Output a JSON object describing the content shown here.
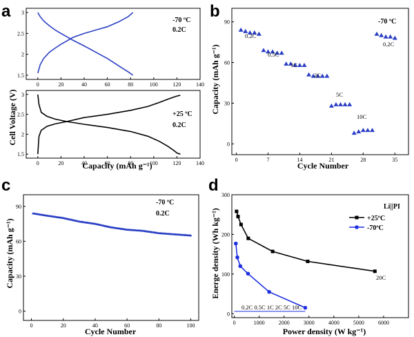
{
  "panels": {
    "a": {
      "label": "a",
      "ylabel": "Cell Voltage (V)",
      "xlabel": "Capacity (mAh g⁻¹)",
      "top": {
        "temp": "-70 ºC",
        "rate": "0.2C"
      },
      "bottom": {
        "temp": "+25 ºC",
        "rate": "0.2C"
      }
    },
    "b": {
      "label": "b",
      "temp": "-70 ºC",
      "ylabel": "Capacity (mAh g⁻¹)",
      "xlabel": "Cycle Number",
      "rate_labels": [
        "0.2C",
        "0.5C",
        "1C",
        "2C",
        "5C",
        "10C",
        "0.2C"
      ]
    },
    "c": {
      "label": "c",
      "temp": "-70 ºC",
      "rate": "0.2C",
      "ylabel": "Capacity (mAh g⁻¹)",
      "xlabel": "Cycle  Number"
    },
    "d": {
      "label": "d",
      "ylabel": "Energe density (Wh kg⁻¹)",
      "xlabel": "Power density (W kg⁻¹)",
      "legend_title": "Li||PI",
      "annotations": [
        "20C",
        "0.2C 0.5C 1C 2C 5C   10C"
      ]
    }
  },
  "chart_data": [
    {
      "id": "a-top",
      "type": "line",
      "xlim": [
        -10,
        140
      ],
      "ylim": [
        1.4,
        3.1
      ],
      "xticks": [
        0,
        20,
        40,
        60,
        80,
        100,
        120,
        140
      ],
      "yticks": [
        1.5,
        2.0,
        2.5,
        3.0
      ],
      "color": "#2a3fc4",
      "series": [
        {
          "x": [
            0,
            2,
            5,
            10,
            15,
            20,
            25,
            30,
            40,
            50,
            60,
            70,
            78,
            82
          ],
          "y": [
            3.0,
            2.9,
            2.8,
            2.68,
            2.58,
            2.5,
            2.42,
            2.34,
            2.2,
            2.05,
            1.9,
            1.72,
            1.58,
            1.5
          ]
        },
        {
          "x": [
            0,
            2,
            5,
            10,
            15,
            20,
            25,
            30,
            40,
            50,
            60,
            70,
            78,
            82
          ],
          "y": [
            1.55,
            1.75,
            1.9,
            2.05,
            2.15,
            2.24,
            2.32,
            2.4,
            2.5,
            2.58,
            2.66,
            2.78,
            2.9,
            3.0
          ]
        }
      ]
    },
    {
      "id": "a-bottom",
      "type": "line",
      "xlim": [
        -10,
        140
      ],
      "ylim": [
        1.4,
        3.1
      ],
      "xticks": [
        0,
        20,
        40,
        60,
        80,
        100,
        120,
        140
      ],
      "yticks": [
        1.5,
        2.0,
        2.5,
        3.0
      ],
      "color": "#000000",
      "series": [
        {
          "x": [
            0,
            1,
            3,
            8,
            15,
            25,
            40,
            60,
            80,
            95,
            105,
            112,
            117,
            120,
            123
          ],
          "y": [
            3.0,
            2.75,
            2.55,
            2.45,
            2.38,
            2.32,
            2.25,
            2.17,
            2.07,
            1.95,
            1.82,
            1.7,
            1.6,
            1.53,
            1.5
          ]
        },
        {
          "x": [
            0,
            1,
            3,
            8,
            15,
            25,
            40,
            60,
            80,
            95,
            105,
            112,
            117,
            120,
            123
          ],
          "y": [
            1.5,
            1.95,
            2.1,
            2.2,
            2.26,
            2.32,
            2.42,
            2.5,
            2.6,
            2.7,
            2.8,
            2.88,
            2.93,
            2.96,
            2.98
          ]
        }
      ]
    },
    {
      "id": "b",
      "type": "scatter",
      "xlim": [
        -1,
        38
      ],
      "ylim": [
        -8,
        100
      ],
      "xticks": [
        0,
        7,
        14,
        21,
        28,
        35
      ],
      "yticks": [
        0,
        30,
        60,
        90
      ],
      "color": "#2a3fc4",
      "x": [
        1,
        2,
        3,
        4,
        5,
        6,
        7,
        8,
        9,
        10,
        11,
        12,
        13,
        14,
        15,
        16,
        17,
        18,
        19,
        20,
        21,
        22,
        23,
        24,
        25,
        26,
        27,
        28,
        29,
        30,
        31,
        32,
        33,
        34,
        35
      ],
      "y": [
        84,
        83,
        82,
        82,
        81,
        69,
        68,
        68,
        67,
        67,
        59,
        59,
        58,
        58,
        58,
        51,
        50,
        50,
        50,
        50,
        28,
        29,
        29,
        29,
        29,
        8,
        9,
        10,
        10,
        10,
        81,
        80,
        79,
        79,
        78
      ]
    },
    {
      "id": "c",
      "type": "line",
      "xlim": [
        -5,
        105
      ],
      "ylim": [
        -8,
        100
      ],
      "xticks": [
        0,
        20,
        40,
        60,
        80,
        100
      ],
      "yticks": [
        0,
        30,
        60,
        90
      ],
      "color": "#2a3fc4",
      "x": [
        1,
        10,
        20,
        30,
        40,
        50,
        60,
        70,
        80,
        90,
        100
      ],
      "y": [
        84,
        82,
        80,
        77,
        75,
        72,
        70,
        69,
        67,
        66,
        65
      ]
    },
    {
      "id": "d",
      "type": "line",
      "xlim": [
        -100,
        7000
      ],
      "ylim": [
        -10,
        300
      ],
      "xticks": [
        0,
        1000,
        2000,
        3000,
        4000,
        5000,
        6000
      ],
      "yticks": [
        0,
        100,
        200,
        300
      ],
      "series": [
        {
          "name": "+25ºC",
          "color": "#000000",
          "marker": "square",
          "x": [
            90,
            150,
            270,
            560,
            1540,
            2950,
            5650
          ],
          "y": [
            258,
            245,
            225,
            190,
            157,
            132,
            107
          ]
        },
        {
          "name": "-70ºC",
          "color": "#1f2fe0",
          "marker": "circle",
          "x": [
            60,
            120,
            240,
            550,
            1400,
            2850
          ],
          "y": [
            177,
            142,
            120,
            101,
            55,
            15
          ]
        }
      ]
    }
  ]
}
